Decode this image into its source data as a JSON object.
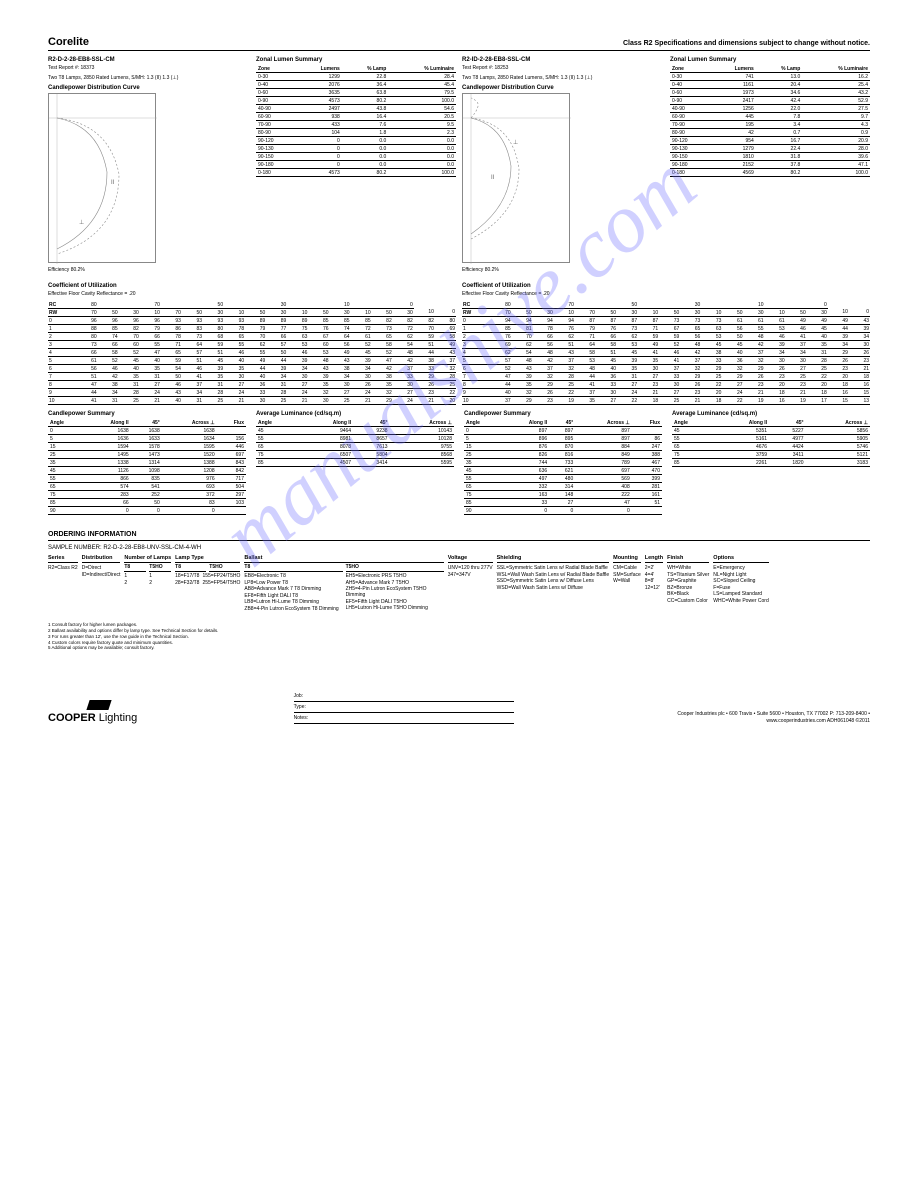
{
  "title": "Corelite",
  "subtitle": "Class R2 Specifications and dimensions subject to change without notice.",
  "watermark": "manualshive.com",
  "reports": [
    {
      "name": "R2-D-2-28-EB8-SSL-CM",
      "test": "Test Report #: 18373",
      "lamps": "Two T8 Lamps, 2850 Rated Lumens, S/MH: 1.3 (II) 1.3 (⊥)",
      "photometry": "Candlepower Distribution Curve",
      "eff": "Efficiency 80.2%"
    },
    {
      "name": "R2-ID-2-28-EB8-SSL-CM",
      "test": "Test Report #: 18253",
      "lamps": "Two T8 Lamps, 2850 Rated Lumens, S/MH: 1.3 (II) 1.3 (⊥)",
      "photometry": "Candlepower Distribution Curve",
      "eff": "Efficiency 80.2%"
    }
  ],
  "zonal": {
    "title": "Zonal Lumen Summary",
    "cols": [
      "Zone",
      "Lumens",
      "% Lamp",
      "% Luminaire"
    ],
    "rows1": [
      [
        "0-30",
        "1299",
        "22.8",
        "28.4"
      ],
      [
        "0-40",
        "2076",
        "36.4",
        "45.4"
      ],
      [
        "0-60",
        "3635",
        "63.8",
        "79.5"
      ],
      [
        "0-90",
        "4573",
        "80.2",
        "100.0"
      ],
      [
        "40-90",
        "2497",
        "43.8",
        "54.6"
      ],
      [
        "60-90",
        "938",
        "16.4",
        "20.5"
      ],
      [
        "70-90",
        "433",
        "7.6",
        "9.5"
      ],
      [
        "80-90",
        "104",
        "1.8",
        "2.3"
      ],
      [
        "90-120",
        "0",
        "0.0",
        "0.0"
      ],
      [
        "90-130",
        "0",
        "0.0",
        "0.0"
      ],
      [
        "90-150",
        "0",
        "0.0",
        "0.0"
      ],
      [
        "90-180",
        "0",
        "0.0",
        "0.0"
      ],
      [
        "0-180",
        "4573",
        "80.2",
        "100.0"
      ]
    ],
    "rows2": [
      [
        "0-30",
        "741",
        "13.0",
        "16.2"
      ],
      [
        "0-40",
        "1161",
        "20.4",
        "25.4"
      ],
      [
        "0-60",
        "1973",
        "34.6",
        "43.2"
      ],
      [
        "0-90",
        "2417",
        "42.4",
        "52.9"
      ],
      [
        "40-90",
        "1256",
        "22.0",
        "27.5"
      ],
      [
        "60-90",
        "445",
        "7.8",
        "9.7"
      ],
      [
        "70-90",
        "195",
        "3.4",
        "4.3"
      ],
      [
        "80-90",
        "42",
        "0.7",
        "0.9"
      ],
      [
        "90-120",
        "954",
        "16.7",
        "20.9"
      ],
      [
        "90-130",
        "1279",
        "22.4",
        "28.0"
      ],
      [
        "90-150",
        "1810",
        "31.8",
        "39.6"
      ],
      [
        "90-180",
        "2152",
        "37.8",
        "47.1"
      ],
      [
        "0-180",
        "4569",
        "80.2",
        "100.0"
      ]
    ]
  },
  "cu": {
    "title": "Coefficient of Utilization",
    "colHead": "Effective Floor Cavity Reflectance = .20",
    "rc": "RC",
    "rw": "RW",
    "topRow": [
      "",
      "80",
      "",
      "",
      "70",
      "",
      "",
      "50",
      "",
      "",
      "30",
      "",
      "",
      "10",
      "",
      "",
      "0"
    ],
    "subRow": [
      "",
      "70",
      "50",
      "30",
      "10",
      "70",
      "50",
      "30",
      "10",
      "50",
      "30",
      "10",
      "50",
      "30",
      "10",
      "50",
      "30",
      "10",
      "0"
    ],
    "rows": [
      [
        "0",
        "96",
        "96",
        "96",
        "96",
        "93",
        "93",
        "93",
        "93",
        "89",
        "89",
        "89",
        "85",
        "85",
        "85",
        "82",
        "82",
        "82",
        "80"
      ],
      [
        "1",
        "88",
        "85",
        "82",
        "79",
        "86",
        "83",
        "80",
        "78",
        "79",
        "77",
        "75",
        "76",
        "74",
        "72",
        "73",
        "72",
        "70",
        "69"
      ],
      [
        "2",
        "80",
        "74",
        "70",
        "66",
        "78",
        "73",
        "68",
        "65",
        "70",
        "66",
        "63",
        "67",
        "64",
        "61",
        "65",
        "62",
        "59",
        "58"
      ],
      [
        "3",
        "73",
        "66",
        "60",
        "55",
        "71",
        "64",
        "59",
        "55",
        "62",
        "57",
        "53",
        "60",
        "56",
        "52",
        "58",
        "54",
        "51",
        "49"
      ],
      [
        "4",
        "66",
        "58",
        "52",
        "47",
        "65",
        "57",
        "51",
        "46",
        "55",
        "50",
        "46",
        "53",
        "49",
        "45",
        "52",
        "48",
        "44",
        "43"
      ],
      [
        "5",
        "61",
        "52",
        "45",
        "40",
        "59",
        "51",
        "45",
        "40",
        "49",
        "44",
        "39",
        "48",
        "43",
        "39",
        "47",
        "42",
        "38",
        "37"
      ],
      [
        "6",
        "56",
        "46",
        "40",
        "35",
        "54",
        "46",
        "39",
        "35",
        "44",
        "39",
        "34",
        "43",
        "38",
        "34",
        "42",
        "37",
        "33",
        "32"
      ],
      [
        "7",
        "51",
        "42",
        "35",
        "31",
        "50",
        "41",
        "35",
        "30",
        "40",
        "34",
        "30",
        "39",
        "34",
        "30",
        "38",
        "33",
        "29",
        "28"
      ],
      [
        "8",
        "47",
        "38",
        "31",
        "27",
        "46",
        "37",
        "31",
        "27",
        "36",
        "31",
        "27",
        "35",
        "30",
        "26",
        "35",
        "30",
        "26",
        "25"
      ],
      [
        "9",
        "44",
        "34",
        "28",
        "24",
        "43",
        "34",
        "28",
        "24",
        "33",
        "28",
        "24",
        "32",
        "27",
        "24",
        "32",
        "27",
        "23",
        "22"
      ],
      [
        "10",
        "41",
        "31",
        "25",
        "21",
        "40",
        "31",
        "25",
        "21",
        "30",
        "25",
        "21",
        "30",
        "25",
        "21",
        "29",
        "24",
        "21",
        "20"
      ]
    ],
    "rows2": [
      [
        "0",
        "94",
        "94",
        "94",
        "94",
        "87",
        "87",
        "87",
        "87",
        "73",
        "73",
        "73",
        "61",
        "61",
        "61",
        "49",
        "49",
        "49",
        "43"
      ],
      [
        "1",
        "85",
        "81",
        "78",
        "76",
        "79",
        "76",
        "73",
        "71",
        "67",
        "65",
        "63",
        "56",
        "55",
        "53",
        "46",
        "45",
        "44",
        "39"
      ],
      [
        "2",
        "76",
        "70",
        "66",
        "62",
        "71",
        "66",
        "62",
        "59",
        "59",
        "56",
        "53",
        "50",
        "48",
        "46",
        "41",
        "40",
        "39",
        "34"
      ],
      [
        "3",
        "69",
        "62",
        "56",
        "51",
        "64",
        "58",
        "53",
        "49",
        "52",
        "48",
        "45",
        "45",
        "42",
        "39",
        "37",
        "35",
        "34",
        "30"
      ],
      [
        "4",
        "62",
        "54",
        "48",
        "43",
        "58",
        "51",
        "45",
        "41",
        "46",
        "42",
        "38",
        "40",
        "37",
        "34",
        "34",
        "31",
        "29",
        "26"
      ],
      [
        "5",
        "57",
        "48",
        "42",
        "37",
        "53",
        "45",
        "39",
        "35",
        "41",
        "37",
        "33",
        "36",
        "32",
        "30",
        "30",
        "28",
        "26",
        "23"
      ],
      [
        "6",
        "52",
        "43",
        "37",
        "32",
        "48",
        "40",
        "35",
        "30",
        "37",
        "32",
        "29",
        "32",
        "29",
        "26",
        "27",
        "25",
        "23",
        "21"
      ],
      [
        "7",
        "47",
        "39",
        "32",
        "28",
        "44",
        "36",
        "31",
        "27",
        "33",
        "29",
        "25",
        "29",
        "26",
        "23",
        "25",
        "22",
        "20",
        "18"
      ],
      [
        "8",
        "44",
        "35",
        "29",
        "25",
        "41",
        "33",
        "27",
        "23",
        "30",
        "26",
        "22",
        "27",
        "23",
        "20",
        "23",
        "20",
        "18",
        "16"
      ],
      [
        "9",
        "40",
        "32",
        "26",
        "22",
        "37",
        "30",
        "24",
        "21",
        "27",
        "23",
        "20",
        "24",
        "21",
        "18",
        "21",
        "18",
        "16",
        "15"
      ],
      [
        "10",
        "37",
        "29",
        "23",
        "19",
        "35",
        "27",
        "22",
        "18",
        "25",
        "21",
        "18",
        "22",
        "19",
        "16",
        "19",
        "17",
        "15",
        "13"
      ]
    ]
  },
  "cp": {
    "title": "Candlepower Summary",
    "cols": [
      "Angle",
      "Along II",
      "45°",
      "Across ⊥",
      "Flux"
    ],
    "rows": [
      [
        "0",
        "1638",
        "1638",
        "1638",
        ""
      ],
      [
        "5",
        "1636",
        "1633",
        "1634",
        "156"
      ],
      [
        "15",
        "1594",
        "1578",
        "1595",
        "446"
      ],
      [
        "25",
        "1495",
        "1473",
        "1520",
        "697"
      ],
      [
        "35",
        "1338",
        "1314",
        "1388",
        "843"
      ],
      [
        "45",
        "1126",
        "1098",
        "1208",
        "842"
      ],
      [
        "55",
        "866",
        "835",
        "976",
        "717"
      ],
      [
        "65",
        "574",
        "541",
        "693",
        "504"
      ],
      [
        "75",
        "283",
        "252",
        "372",
        "297"
      ],
      [
        "85",
        "66",
        "50",
        "83",
        "103"
      ],
      [
        "90",
        "0",
        "0",
        "0",
        ""
      ]
    ],
    "rows2": [
      [
        "0",
        "897",
        "897",
        "897",
        ""
      ],
      [
        "5",
        "896",
        "895",
        "897",
        "86"
      ],
      [
        "15",
        "876",
        "870",
        "884",
        "247"
      ],
      [
        "25",
        "826",
        "816",
        "849",
        "388"
      ],
      [
        "35",
        "744",
        "733",
        "789",
        "467"
      ],
      [
        "45",
        "636",
        "621",
        "697",
        "470"
      ],
      [
        "55",
        "497",
        "480",
        "569",
        "399"
      ],
      [
        "65",
        "332",
        "314",
        "408",
        "281"
      ],
      [
        "75",
        "163",
        "148",
        "222",
        "161"
      ],
      [
        "85",
        "33",
        "27",
        "47",
        "51"
      ],
      [
        "90",
        "0",
        "0",
        "0",
        ""
      ]
    ]
  },
  "lum": {
    "title": "Average Luminance (cd/sq.m)",
    "cols": [
      "Angle",
      "Along II",
      "45°",
      "Across ⊥"
    ],
    "rows": [
      [
        "45",
        "9464",
        "9238",
        "10143"
      ],
      [
        "55",
        "8981",
        "8657",
        "10128"
      ],
      [
        "65",
        "8078",
        "7613",
        "9755"
      ],
      [
        "75",
        "6507",
        "5804",
        "8568"
      ],
      [
        "85",
        "4507",
        "3414",
        "5595"
      ]
    ],
    "rows2": [
      [
        "45",
        "5351",
        "5227",
        "5856"
      ],
      [
        "55",
        "5161",
        "4977",
        "5905"
      ],
      [
        "65",
        "4676",
        "4424",
        "5746"
      ],
      [
        "75",
        "3759",
        "3411",
        "5121"
      ],
      [
        "85",
        "2261",
        "1820",
        "3183"
      ]
    ]
  },
  "order": {
    "title": "ORDERING INFORMATION",
    "sample": "SAMPLE NUMBER: R2-D-2-28-EB8-UNV-SSL-CM-4-WH",
    "cols": [
      {
        "head": "Series",
        "sub": [
          ""
        ],
        "body": [
          [
            "R2=Class R2"
          ]
        ]
      },
      {
        "head": "Distribution",
        "sub": [
          ""
        ],
        "body": [
          [
            "D=Direct",
            "ID=Indirect/Direct"
          ]
        ]
      },
      {
        "head": "Number of Lamps",
        "sub": [
          "T8",
          "T5HO"
        ],
        "body": [
          [
            "1",
            "2"
          ],
          [
            "1",
            "2"
          ]
        ]
      },
      {
        "head": "Lamp Type",
        "sub": [
          "T8",
          "T5HO"
        ],
        "body": [
          [
            "18=F17/T8",
            "28=F32/T8"
          ],
          [
            "155=FP24/T5HO",
            "255=FP54/T5HO"
          ]
        ]
      },
      {
        "head": "Ballast",
        "sub": [
          "T8",
          "T5HO"
        ],
        "body": [
          [
            "EB8=Electronic T8",
            "LP8=Low Power T8",
            "AB8=Advance Mark 7 T8 Dimming",
            "EF8=Fifth Light DALI T8",
            "LB8=Lutron Hi-Lume T8 Dimming",
            "ZB8=4-Pin Lutron EcoSystem T8 Dimming"
          ],
          [
            "EH5=Electronic PRS T5HO",
            "AH5=Advance Mark 7 T5HO",
            "ZH5=4-Pin Lutron EcoSystem T5HO Dimming",
            "EF5=Fifth Light DALI T5HO",
            "LH5=Lutron Hi-Lume T5HO Dimming"
          ]
        ]
      },
      {
        "head": "Voltage",
        "sub": [
          ""
        ],
        "body": [
          [
            "UNV=120 thru 277V",
            "347=347V"
          ]
        ]
      },
      {
        "head": "Shielding",
        "sub": [
          ""
        ],
        "body": [
          [
            "SSL=Symmetric Satin Lens w/ Radial Blade Baffle",
            "WSL=Wall Wash Satin Lens w/ Radial Blade Baffle",
            "SSD=Symmetric Satin Lens w/ Diffuse Lens",
            "WSD=Wall Wash Satin Lens w/ Diffuse"
          ]
        ]
      },
      {
        "head": "Mounting",
        "sub": [
          ""
        ],
        "body": [
          [
            "CM=Cable",
            "SM=Surface",
            "W=Wall"
          ]
        ]
      },
      {
        "head": "Length",
        "sub": [
          ""
        ],
        "body": [
          [
            "2=2'",
            "4=4'",
            "8=8'",
            "12=12'"
          ]
        ]
      },
      {
        "head": "Finish",
        "sub": [
          ""
        ],
        "body": [
          [
            "WH=White",
            "TS=Titanium Silver",
            "GP=Graphite",
            "BZ=Bronze",
            "BK=Black",
            "CC=Custom Color"
          ]
        ]
      },
      {
        "head": "Options",
        "sub": [
          ""
        ],
        "body": [
          [
            "E=Emergency",
            "NL=Night Light",
            "SC=Sloped Ceiling",
            "F=Fuse",
            "LS=Lamped Standard",
            "WHC=White Power Cord"
          ]
        ]
      }
    ],
    "notes": [
      "1 Consult factory for higher lumen packages.",
      "2 Ballast availability and options differ by lamp type. See Technical Section for details.",
      "3 For runs greater than 12', use the row guide in the Technical Section.",
      "4 Custom colors require factory quote and minimum quantities.",
      "5 Additional options may be available; consult factory."
    ]
  },
  "footer": {
    "lines": [
      "Job",
      "Type",
      "Notes"
    ],
    "right": "Cooper Industries plc • 600 Travis • Suite 5600 • Houston, TX 77002\nP: 713-209-8400 • www.cooperindustries.com\nADH061048 ©2011"
  }
}
